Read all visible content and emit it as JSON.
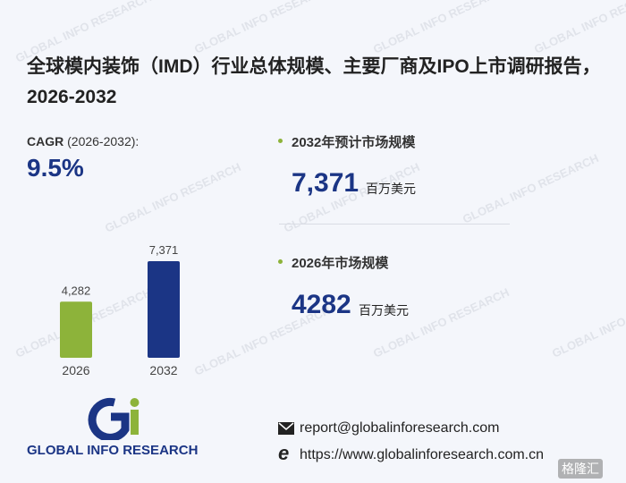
{
  "header": {
    "title": "全球模内装饰（IMD）行业总体规模、主要厂商及IPO上市调研报告，2026-2032"
  },
  "cagr": {
    "label": "CAGR",
    "period": "(2026-2032):",
    "value": "9.5%"
  },
  "chart_data": {
    "type": "bar",
    "categories": [
      "2026",
      "2032"
    ],
    "values": [
      4282,
      7371
    ],
    "value_labels": [
      "4,282",
      "7,371"
    ],
    "colors": [
      "#8db33a",
      "#1b3585"
    ]
  },
  "stats": [
    {
      "label": "2032年预计市场规模",
      "value": "7,371",
      "unit": "百万美元"
    },
    {
      "label": "2026年市场规模",
      "value": "4282",
      "unit": "百万美元"
    }
  ],
  "footer": {
    "logo": "GLOBAL INFO RESEARCH",
    "email": "report@globalinforesearch.com",
    "url": "https://www.globalinforesearch.com.cn",
    "watermark": "格隆汇"
  }
}
